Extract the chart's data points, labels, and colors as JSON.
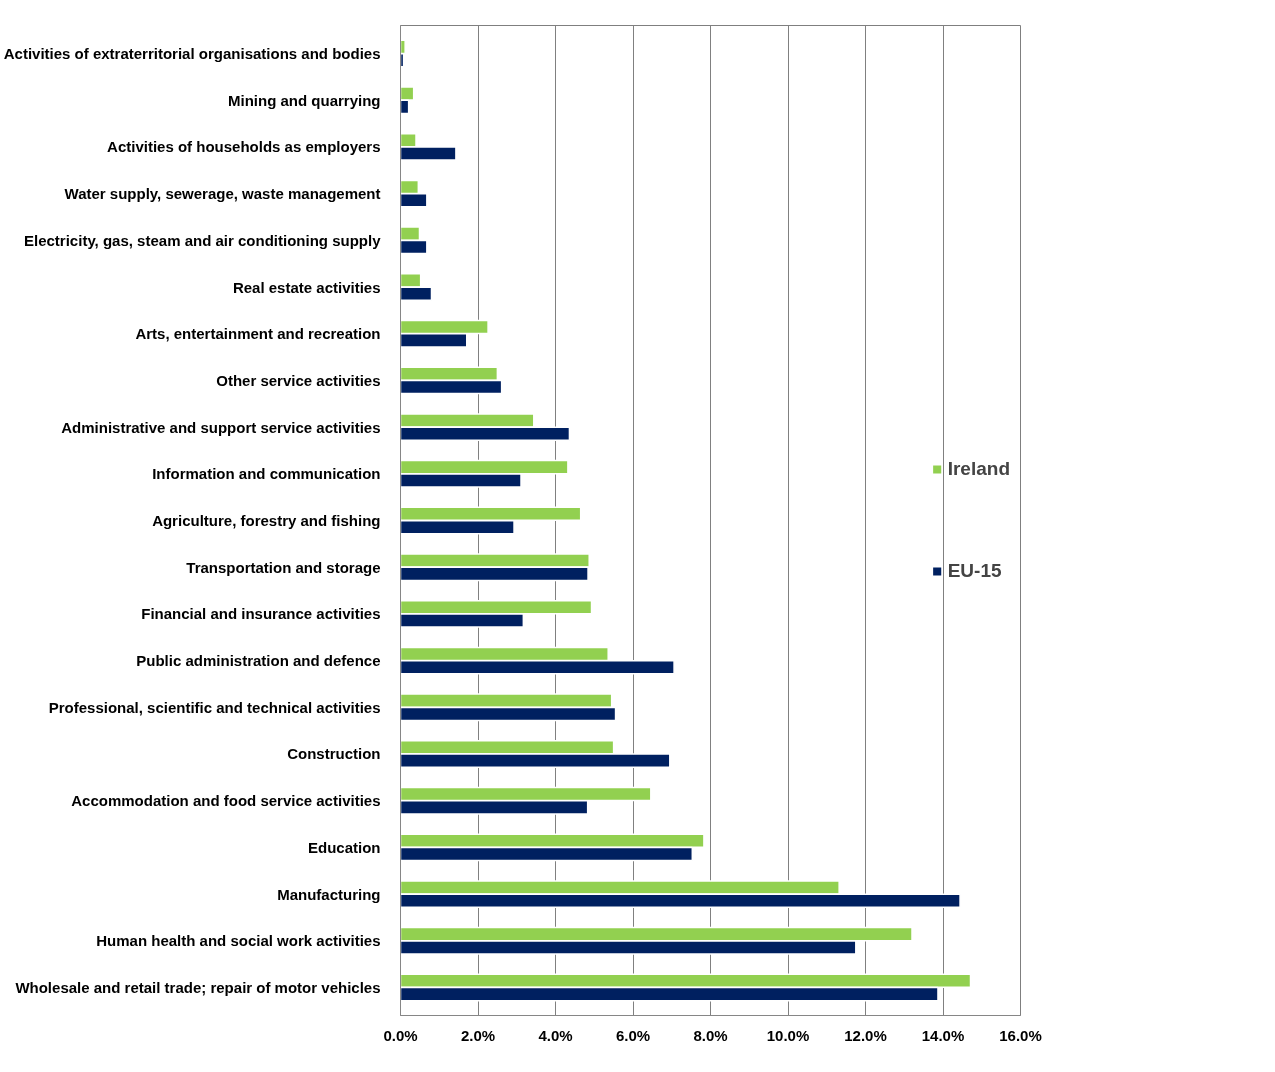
{
  "chart_data": {
    "type": "bar",
    "orientation": "horizontal",
    "categories": [
      "Activities of extraterritorial organisations and bodies",
      "Mining and quarrying",
      "Activities of households as employers",
      "Water supply, sewerage, waste management",
      "Electricity, gas, steam and air conditioning supply",
      "Real estate activities",
      "Arts, entertainment and recreation",
      "Other service activities",
      "Administrative and support service activities",
      "Information and communication",
      "Agriculture, forestry and fishing",
      "Transportation and storage",
      "Financial and insurance activities",
      "Public administration and defence",
      "Professional, scientific and technical activities",
      "Construction",
      "Accommodation and food service activities",
      "Education",
      "Manufacturing",
      "Human health and social work activities",
      "Wholesale and retail trade; repair of motor vehicles"
    ],
    "series": [
      {
        "name": "Ireland",
        "color": "#92d050",
        "values": [
          0.12,
          0.34,
          0.4,
          0.46,
          0.49,
          0.52,
          2.26,
          2.5,
          3.44,
          4.32,
          4.65,
          4.87,
          4.93,
          5.36,
          5.45,
          5.5,
          6.46,
          7.83,
          11.32,
          13.2,
          14.71
        ]
      },
      {
        "name": "EU-15",
        "color": "#002060",
        "values": [
          0.08,
          0.21,
          1.43,
          0.68,
          0.68,
          0.8,
          1.71,
          2.61,
          4.36,
          3.11,
          2.93,
          4.84,
          3.17,
          7.06,
          5.55,
          6.95,
          4.83,
          7.53,
          14.44,
          11.75,
          13.87
        ]
      }
    ],
    "xlim": [
      0,
      16
    ],
    "xticks": [
      {
        "value": 0,
        "label": "0.0%"
      },
      {
        "value": 2,
        "label": "2.0%"
      },
      {
        "value": 4,
        "label": "4.0%"
      },
      {
        "value": 6,
        "label": "6.0%"
      },
      {
        "value": 8,
        "label": "8.0%"
      },
      {
        "value": 10,
        "label": "10.0%"
      },
      {
        "value": 12,
        "label": "12.0%"
      },
      {
        "value": 14,
        "label": "14.0%"
      },
      {
        "value": 16,
        "label": "16.0%"
      }
    ],
    "grid": "x",
    "legend": "right"
  }
}
